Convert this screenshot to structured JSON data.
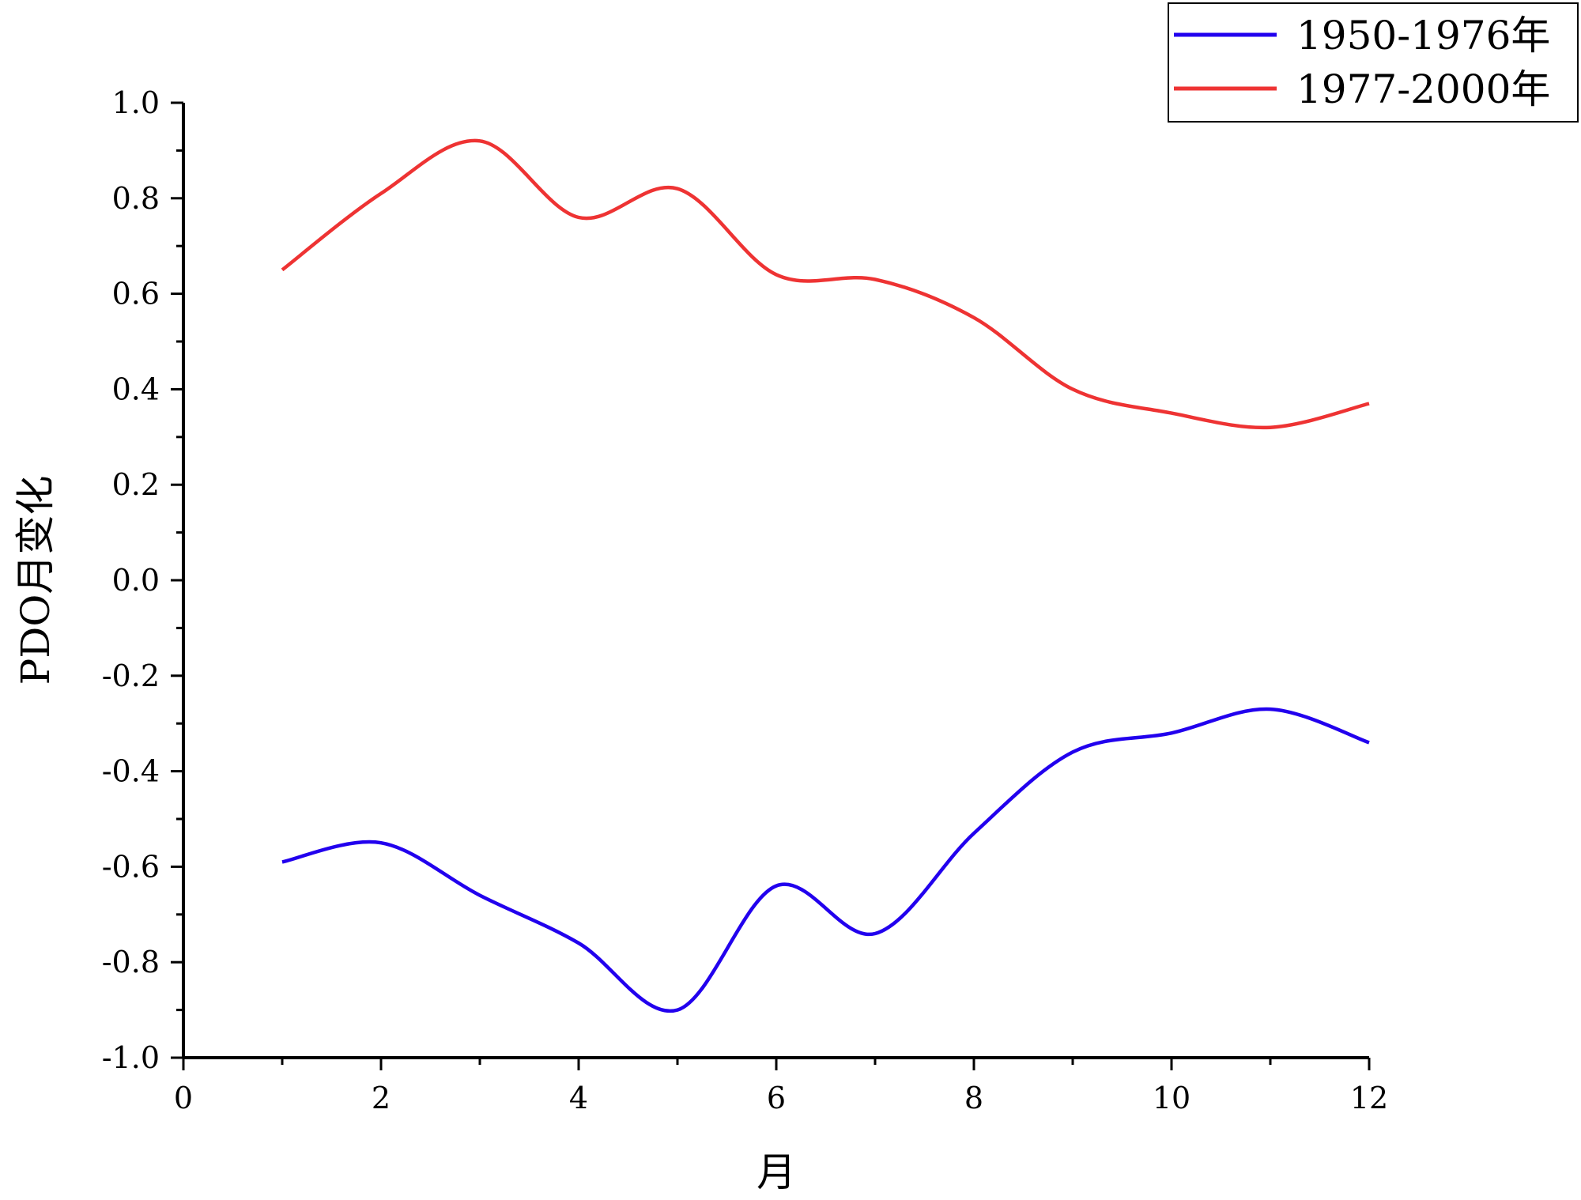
{
  "chart_data": {
    "type": "line",
    "title": "",
    "xlabel": "月",
    "ylabel": "PDO月变化",
    "xlim": [
      0,
      12
    ],
    "ylim": [
      -1.0,
      1.0
    ],
    "x_ticks": [
      0,
      2,
      4,
      6,
      8,
      10,
      12
    ],
    "y_ticks": [
      -1.0,
      -0.8,
      -0.6,
      -0.4,
      -0.2,
      0.0,
      0.2,
      0.4,
      0.6,
      0.8,
      1.0
    ],
    "x_tick_labels": [
      "0",
      "2",
      "4",
      "6",
      "8",
      "10",
      "12"
    ],
    "y_tick_labels": [
      "-1.0",
      "-0.8",
      "-0.6",
      "-0.4",
      "-0.2",
      "0.0",
      "0.2",
      "0.4",
      "0.6",
      "0.8",
      "1.0"
    ],
    "legend_position": "top-right",
    "grid": false,
    "x": [
      1,
      2,
      3,
      4,
      5,
      6,
      7,
      8,
      9,
      10,
      11,
      12
    ],
    "series": [
      {
        "name": "1950-1976年",
        "color": "#2200ee",
        "values": [
          -0.59,
          -0.55,
          -0.66,
          -0.76,
          -0.9,
          -0.64,
          -0.74,
          -0.53,
          -0.36,
          -0.32,
          -0.27,
          -0.34
        ]
      },
      {
        "name": "1977-2000年",
        "color": "#ee3333",
        "values": [
          0.65,
          0.81,
          0.92,
          0.76,
          0.82,
          0.64,
          0.63,
          0.55,
          0.4,
          0.35,
          0.32,
          0.37
        ]
      }
    ]
  }
}
